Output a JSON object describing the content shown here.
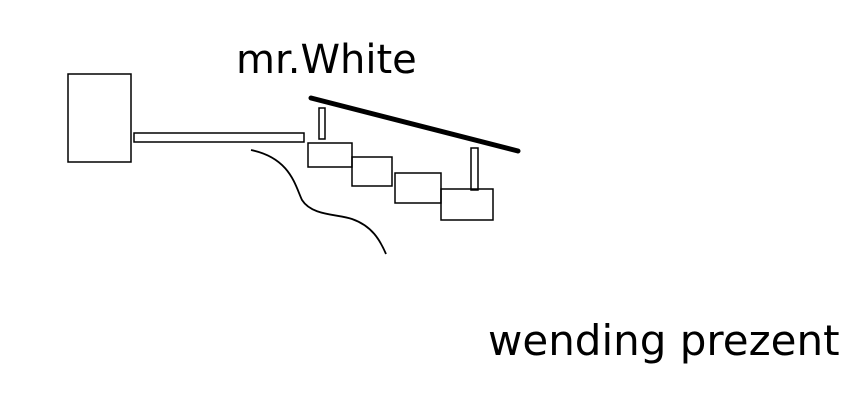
{
  "labels": {
    "top": "mr.White",
    "bottom": "wending prezent"
  },
  "colors": {
    "stroke": "#000000",
    "background": "#ffffff"
  }
}
